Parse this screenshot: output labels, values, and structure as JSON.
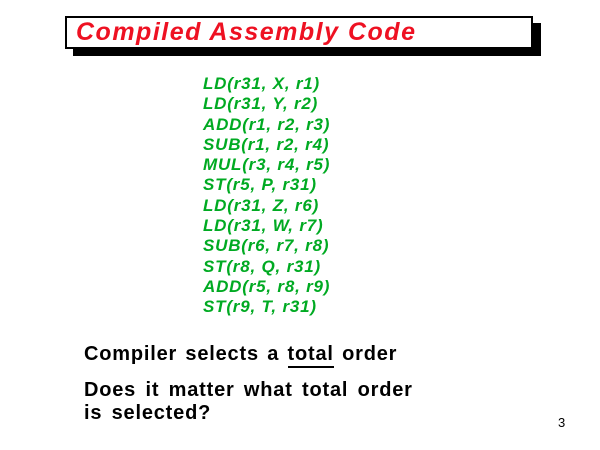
{
  "slide": {
    "title": "Compiled Assembly Code",
    "page_number": "3",
    "colors": {
      "title_red": "#ee1122",
      "code_green": "#00aa22",
      "text_black": "#000000",
      "box_border": "#000000",
      "box_shadow": "#000000",
      "background": "#ffffff"
    },
    "code_lines": [
      "LD(r31, X, r1)",
      "LD(r31, Y, r2)",
      "ADD(r1, r2, r3)",
      "SUB(r1, r2, r4)",
      "MUL(r3, r4, r5)",
      "ST(r5, P, r31)",
      "LD(r31, Z, r6)",
      "LD(r31, W, r7)",
      "SUB(r6, r7, r8)",
      "ST(r8, Q, r31)",
      "ADD(r5, r8, r9)",
      "ST(r9, T, r31)"
    ],
    "statement": {
      "prefix": "Compiler selects a ",
      "underlined": "total",
      "suffix": " order"
    },
    "question": {
      "line1": "Does it matter what total order",
      "line2": "is selected?"
    }
  }
}
